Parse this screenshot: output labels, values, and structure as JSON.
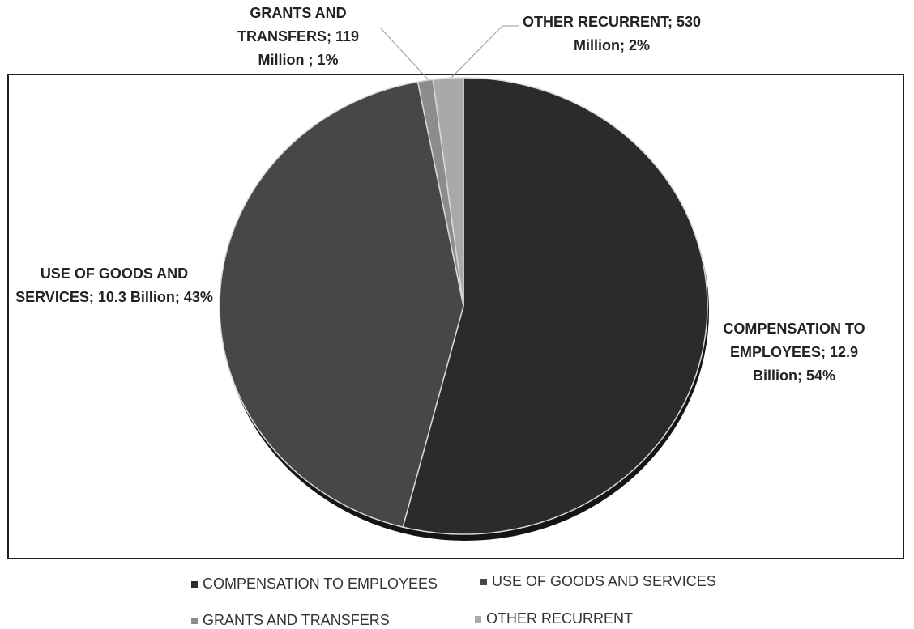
{
  "chart_data": {
    "type": "pie",
    "categories": [
      "COMPENSATION TO EMPLOYEES",
      "USE OF GOODS AND SERVICES",
      "GRANTS AND TRANSFERS",
      "OTHER RECURRENT"
    ],
    "values": [
      54,
      43,
      1,
      2
    ],
    "value_labels": [
      "COMPENSATION TO EMPLOYEES; 12.9 Billion; 54%",
      "USE OF GOODS AND SERVICES; 10.3 Billion; 43%",
      "GRANTS AND TRANSFERS; 119 Million ; 1%",
      "OTHER RECURRENT; 530 Million; 2%"
    ],
    "colors": [
      "#2b2b2b",
      "#474747",
      "#8c8c8c",
      "#a9a9a9"
    ],
    "legend": "bottom"
  }
}
